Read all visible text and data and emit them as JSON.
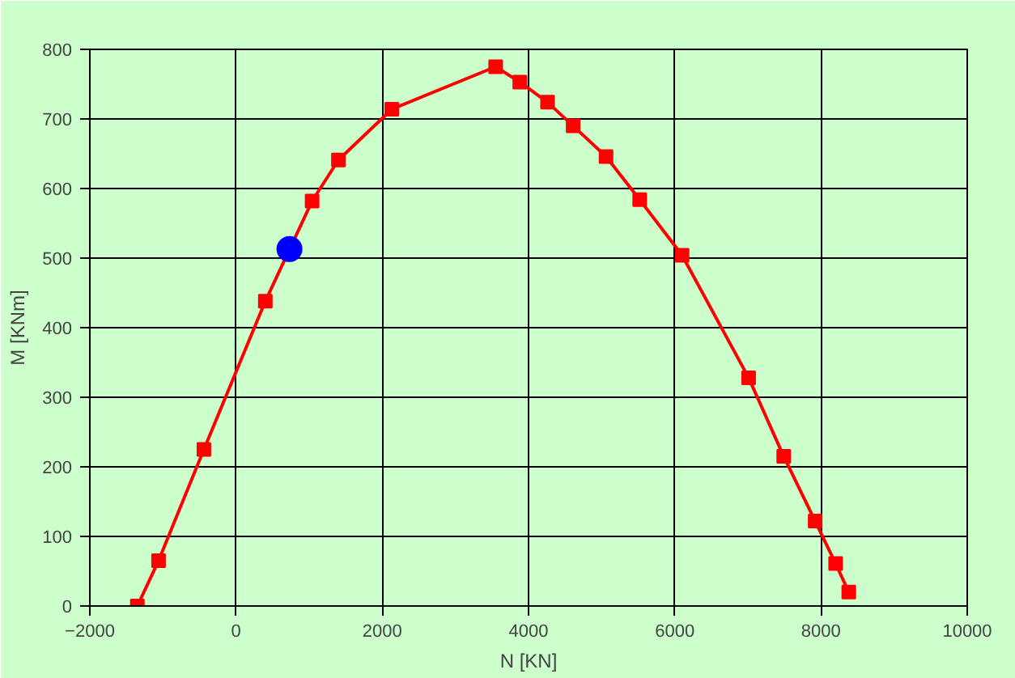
{
  "chart_data": {
    "type": "line",
    "xlabel": "N [KN]",
    "ylabel": "M [KNm]",
    "xlim": [
      -2000,
      10000
    ],
    "xticks": [
      -2000,
      0,
      2000,
      4000,
      6000,
      8000,
      10000
    ],
    "ylim": [
      0,
      800
    ],
    "yticks": [
      0,
      100,
      200,
      300,
      400,
      500,
      600,
      700,
      800
    ],
    "grid": true,
    "series": [
      {
        "color": "#ff0000",
        "marker": "square",
        "x": [
          -1350,
          -1060,
          -440,
          400,
          1040,
          1400,
          2130,
          3550,
          3880,
          4260,
          4610,
          5060,
          5520,
          6100,
          7010,
          7490,
          7920,
          8200,
          8380
        ],
        "values": [
          0,
          65,
          225,
          438,
          582,
          641,
          714,
          775,
          753,
          724,
          690,
          646,
          584,
          504,
          328,
          215,
          122,
          61,
          20
        ]
      },
      {
        "type": "scatter",
        "color": "#0000ff",
        "marker": "circle",
        "x": [
          730
        ],
        "values": [
          513
        ]
      }
    ]
  }
}
